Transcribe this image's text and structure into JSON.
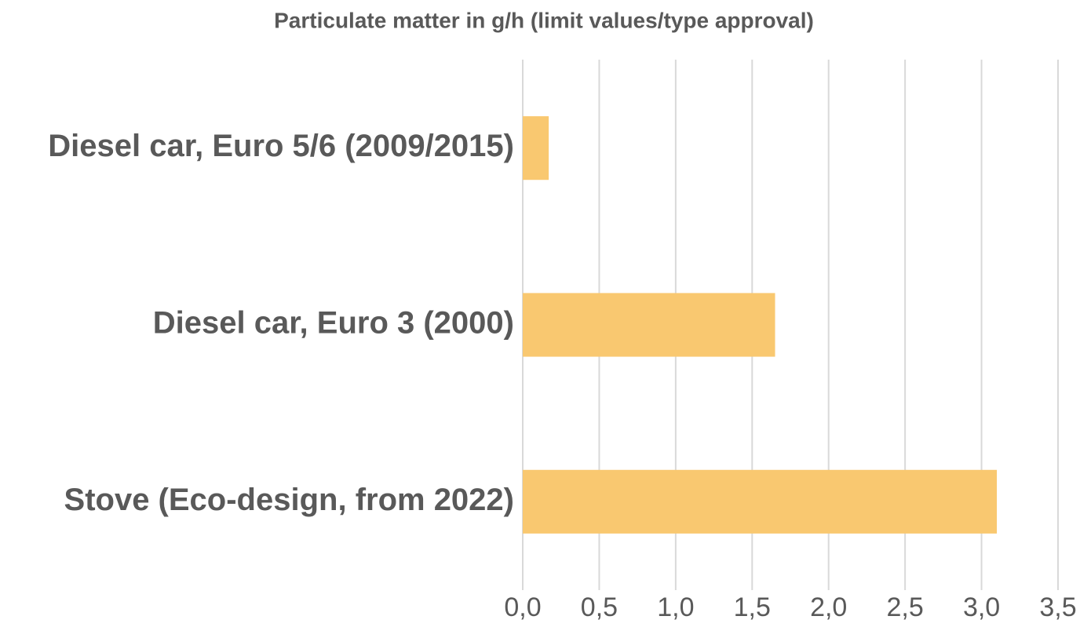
{
  "chart_data": {
    "type": "hbar",
    "title": "Particulate matter in g/h (limit values/type approval)",
    "categories": [
      "Diesel car, Euro 5/6 (2009/2015)",
      "Diesel car, Euro 3 (2000)",
      "Stove (Eco-design, from 2022)"
    ],
    "values": [
      0.17,
      1.65,
      3.1
    ],
    "color": "#f9c870",
    "xlim": [
      0,
      3.5
    ],
    "xticks": [
      {
        "value": 0,
        "label": "0,0"
      },
      {
        "value": 0.5,
        "label": "0,5"
      },
      {
        "value": 1,
        "label": "1,0"
      },
      {
        "value": 1.5,
        "label": "1,5"
      },
      {
        "value": 2,
        "label": "2,0"
      },
      {
        "value": 2.5,
        "label": "2,5"
      },
      {
        "value": 3,
        "label": "3,0"
      },
      {
        "value": 3.5,
        "label": "3,5"
      }
    ],
    "grid": true
  }
}
